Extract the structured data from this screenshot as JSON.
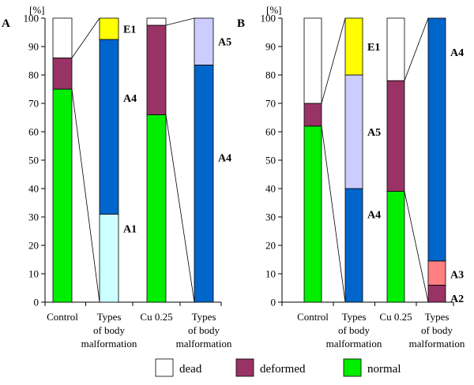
{
  "legend": [
    {
      "name": "dead",
      "color": "#ffffff"
    },
    {
      "name": "deformed",
      "color": "#993366"
    },
    {
      "name": "normal",
      "color": "#00ee00"
    }
  ],
  "chart_data": [
    {
      "type": "bar",
      "stacked": true,
      "panel": "A",
      "ylabel": "[%]",
      "ylim": [
        0,
        100
      ],
      "yticks": [
        0,
        10,
        20,
        30,
        40,
        50,
        60,
        70,
        80,
        90,
        100
      ],
      "grid": false,
      "categories": [
        [
          "Control"
        ],
        [
          "Types",
          "of body",
          "malformation"
        ],
        [
          "Cu 0.25"
        ],
        [
          "Types",
          "of body",
          "malformation"
        ]
      ],
      "bars": [
        {
          "segments": [
            {
              "name": "normal",
              "value": 75,
              "color": "#00ee00"
            },
            {
              "name": "deformed",
              "value": 11,
              "color": "#993366"
            },
            {
              "name": "dead",
              "value": 14,
              "color": "#ffffff"
            }
          ]
        },
        {
          "segments": [
            {
              "name": "A1",
              "value": 31,
              "color": "#ccffff",
              "label": "A1"
            },
            {
              "name": "A4",
              "value": 61.5,
              "color": "#0066cc",
              "label": "A4"
            },
            {
              "name": "E1",
              "value": 7.5,
              "color": "#ffff00",
              "label": "E1"
            }
          ]
        },
        {
          "segments": [
            {
              "name": "normal",
              "value": 66,
              "color": "#00ee00"
            },
            {
              "name": "deformed",
              "value": 31.5,
              "color": "#993366"
            },
            {
              "name": "dead",
              "value": 2.5,
              "color": "#ffffff"
            }
          ]
        },
        {
          "segments": [
            {
              "name": "A4",
              "value": 83.5,
              "color": "#0066cc",
              "label": "A4"
            },
            {
              "name": "A5",
              "value": 16.5,
              "color": "#ccccff",
              "label": "A5"
            }
          ]
        }
      ]
    },
    {
      "type": "bar",
      "stacked": true,
      "panel": "B",
      "ylabel": "[%]",
      "ylim": [
        0,
        100
      ],
      "yticks": [
        0,
        10,
        20,
        30,
        40,
        50,
        60,
        70,
        80,
        90,
        100
      ],
      "grid": false,
      "categories": [
        [
          "Control"
        ],
        [
          "Types",
          "of body",
          "malformation"
        ],
        [
          "Cu 0.25"
        ],
        [
          "Types",
          "of body",
          "malformation"
        ]
      ],
      "bars": [
        {
          "segments": [
            {
              "name": "normal",
              "value": 62,
              "color": "#00ee00"
            },
            {
              "name": "deformed",
              "value": 8,
              "color": "#993366"
            },
            {
              "name": "dead",
              "value": 30,
              "color": "#ffffff"
            }
          ]
        },
        {
          "segments": [
            {
              "name": "A4",
              "value": 40,
              "color": "#0066cc",
              "label": "A4"
            },
            {
              "name": "A5",
              "value": 40,
              "color": "#ccccff",
              "label": "A5"
            },
            {
              "name": "E1",
              "value": 20,
              "color": "#ffff00",
              "label": "E1"
            }
          ]
        },
        {
          "segments": [
            {
              "name": "normal",
              "value": 39,
              "color": "#00ee00"
            },
            {
              "name": "deformed",
              "value": 39,
              "color": "#993366"
            },
            {
              "name": "dead",
              "value": 22,
              "color": "#ffffff"
            }
          ]
        },
        {
          "segments": [
            {
              "name": "A2",
              "value": 6,
              "color": "#993366",
              "label": "A2"
            },
            {
              "name": "A3",
              "value": 8.5,
              "color": "#ff8080",
              "label": "A3"
            },
            {
              "name": "A4",
              "value": 85.5,
              "color": "#0066cc",
              "label": "A4"
            }
          ]
        }
      ]
    }
  ]
}
